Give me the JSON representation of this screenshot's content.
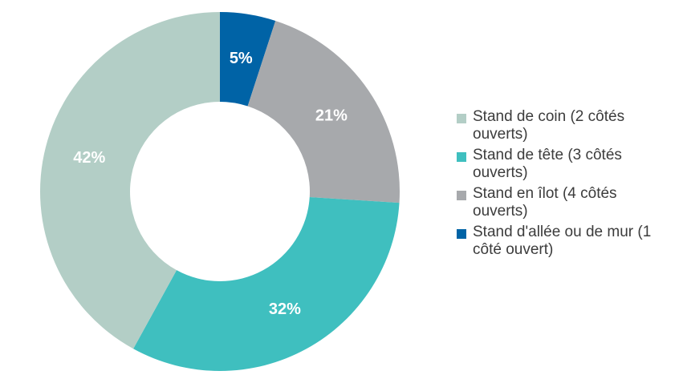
{
  "chart_data": {
    "type": "pie",
    "donut": true,
    "title": "",
    "legend_position": "right",
    "slices": [
      {
        "label": "Stand d'allée ou de mur (1 côté ouvert)",
        "value": 5,
        "value_label": "5%",
        "color": "#0063a6"
      },
      {
        "label": "Stand en îlot (4 côtés ouverts)",
        "value": 21,
        "value_label": "21%",
        "color": "#a7a9ac"
      },
      {
        "label": "Stand de tête (3 côtés ouverts)",
        "value": 32,
        "value_label": "32%",
        "color": "#3fbfbf"
      },
      {
        "label": "Stand de coin (2 côtés ouverts)",
        "value": 42,
        "value_label": "42%",
        "color": "#b3cec6"
      }
    ],
    "legend": [
      {
        "label": "Stand de coin (2 côtés ouverts)",
        "color": "#b3cec6"
      },
      {
        "label": "Stand de tête (3 côtés ouverts)",
        "color": "#3fbfbf"
      },
      {
        "label": "Stand en îlot (4 côtés ouverts)",
        "color": "#a7a9ac"
      },
      {
        "label": "Stand d'allée ou de mur (1 côté ouvert)",
        "color": "#0063a6"
      }
    ]
  }
}
